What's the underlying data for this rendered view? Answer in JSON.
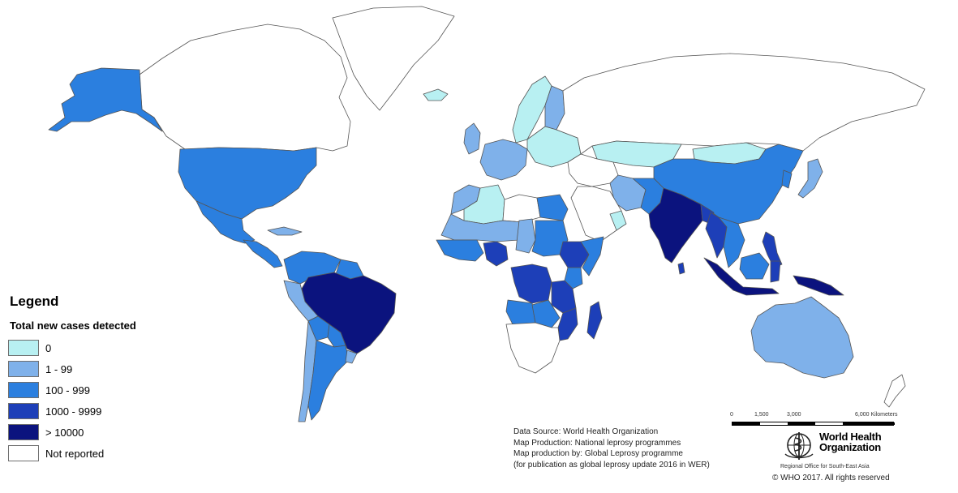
{
  "legend": {
    "title": "Legend",
    "subtitle": "Total new cases detected",
    "items": [
      {
        "label": "0",
        "color": "#b8f0f2"
      },
      {
        "label": "1 - 99",
        "color": "#7fb1ea"
      },
      {
        "label": "100 - 999",
        "color": "#2b7fdf"
      },
      {
        "label": "1000 - 9999",
        "color": "#1d3fb8"
      },
      {
        "label": "> 10000",
        "color": "#0b137e"
      },
      {
        "label": "Not reported",
        "color": "#ffffff"
      }
    ]
  },
  "credits": {
    "line1": "Data Source: World Health Organization",
    "line2": "Map Production: National leprosy programmes",
    "line3": "Map production by: Global  Leprosy programme",
    "line4": "(for publication as global leprosy update 2016 in WER)"
  },
  "scale": {
    "labels": [
      "0",
      "1,500",
      "3,000",
      "6,000 Kilometers"
    ]
  },
  "who": {
    "name_line1": "World Health",
    "name_line2": "Organization",
    "region": "Regional Office for South-East Asia",
    "copyright": "© WHO 2017. All rights reserved"
  },
  "map": {
    "regions": [
      {
        "name": "canada-arctic",
        "category": "Not reported"
      },
      {
        "name": "greenland",
        "category": "Not reported"
      },
      {
        "name": "alaska",
        "category": "100 - 999"
      },
      {
        "name": "usa",
        "category": "100 - 999"
      },
      {
        "name": "mexico",
        "category": "100 - 999"
      },
      {
        "name": "central-america",
        "category": "100 - 999"
      },
      {
        "name": "cuba",
        "category": "1 - 99"
      },
      {
        "name": "colombia-venezuela",
        "category": "100 - 999"
      },
      {
        "name": "guianas",
        "category": "100 - 999"
      },
      {
        "name": "brazil",
        "category": "> 10000"
      },
      {
        "name": "peru",
        "category": "1 - 99"
      },
      {
        "name": "bolivia",
        "category": "100 - 999"
      },
      {
        "name": "paraguay",
        "category": "100 - 999"
      },
      {
        "name": "argentina",
        "category": "100 - 999"
      },
      {
        "name": "chile",
        "category": "1 - 99"
      },
      {
        "name": "uruguay",
        "category": "1 - 99"
      },
      {
        "name": "iceland",
        "category": "0"
      },
      {
        "name": "scandinavia",
        "category": "0"
      },
      {
        "name": "finland",
        "category": "1 - 99"
      },
      {
        "name": "uk",
        "category": "1 - 99"
      },
      {
        "name": "west-europe",
        "category": "1 - 99"
      },
      {
        "name": "east-europe",
        "category": "0"
      },
      {
        "name": "russia",
        "category": "Not reported"
      },
      {
        "name": "kazakhstan",
        "category": "0"
      },
      {
        "name": "mongolia",
        "category": "0"
      },
      {
        "name": "china",
        "category": "100 - 999"
      },
      {
        "name": "japan",
        "category": "1 - 99"
      },
      {
        "name": "korea",
        "category": "100 - 999"
      },
      {
        "name": "middle-east",
        "category": "Not reported"
      },
      {
        "name": "iran",
        "category": "1 - 99"
      },
      {
        "name": "arabian-peninsula",
        "category": "Not reported"
      },
      {
        "name": "oman",
        "category": "0"
      },
      {
        "name": "afghanistan-pakistan",
        "category": "100 - 999"
      },
      {
        "name": "india",
        "category": "> 10000"
      },
      {
        "name": "nepal-bangladesh",
        "category": "1000 - 9999"
      },
      {
        "name": "myanmar",
        "category": "1000 - 9999"
      },
      {
        "name": "indochina",
        "category": "100 - 999"
      },
      {
        "name": "sri-lanka",
        "category": "1000 - 9999"
      },
      {
        "name": "philippines",
        "category": "1000 - 9999"
      },
      {
        "name": "sumatra-java",
        "category": "> 10000"
      },
      {
        "name": "borneo",
        "category": "100 - 999"
      },
      {
        "name": "sulawesi",
        "category": "1000 - 9999"
      },
      {
        "name": "new-guinea",
        "category": "> 10000"
      },
      {
        "name": "australia",
        "category": "1 - 99"
      },
      {
        "name": "new-zealand",
        "category": "Not reported"
      },
      {
        "name": "morocco",
        "category": "1 - 99"
      },
      {
        "name": "algeria",
        "category": "0"
      },
      {
        "name": "libya",
        "category": "Not reported"
      },
      {
        "name": "egypt",
        "category": "100 - 999"
      },
      {
        "name": "mali-niger",
        "category": "1 - 99"
      },
      {
        "name": "west-africa",
        "category": "100 - 999"
      },
      {
        "name": "nigeria",
        "category": "1000 - 9999"
      },
      {
        "name": "chad",
        "category": "1 - 99"
      },
      {
        "name": "sudan",
        "category": "100 - 999"
      },
      {
        "name": "ethiopia",
        "category": "1000 - 9999"
      },
      {
        "name": "somalia",
        "category": "100 - 999"
      },
      {
        "name": "kenya",
        "category": "100 - 999"
      },
      {
        "name": "drc",
        "category": "1000 - 9999"
      },
      {
        "name": "tanzania",
        "category": "1000 - 9999"
      },
      {
        "name": "angola",
        "category": "100 - 999"
      },
      {
        "name": "mozambique",
        "category": "1000 - 9999"
      },
      {
        "name": "madagascar",
        "category": "1000 - 9999"
      },
      {
        "name": "zambia-zimbabwe",
        "category": "100 - 999"
      },
      {
        "name": "southern-africa",
        "category": "Not reported"
      }
    ]
  }
}
